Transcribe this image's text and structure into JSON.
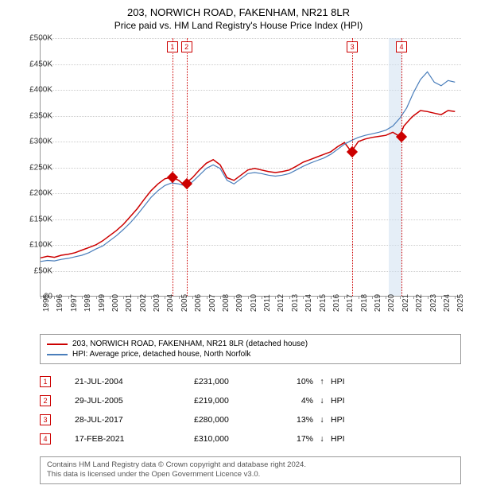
{
  "title": "203, NORWICH ROAD, FAKENHAM, NR21 8LR",
  "subtitle": "Price paid vs. HM Land Registry's House Price Index (HPI)",
  "chart": {
    "type": "line",
    "ylim": [
      0,
      500000
    ],
    "ytick_step": 50000,
    "ytick_labels": [
      "£0",
      "£50K",
      "£100K",
      "£150K",
      "£200K",
      "£250K",
      "£300K",
      "£350K",
      "£400K",
      "£450K",
      "£500K"
    ],
    "x_years": [
      1995,
      1996,
      1997,
      1998,
      1999,
      2000,
      2001,
      2002,
      2003,
      2004,
      2005,
      2006,
      2007,
      2008,
      2009,
      2010,
      2011,
      2012,
      2013,
      2014,
      2015,
      2016,
      2017,
      2018,
      2019,
      2020,
      2021,
      2022,
      2023,
      2024,
      2025
    ],
    "xlim": [
      1995,
      2025.5
    ],
    "shade_band": {
      "x_start": 2020.2,
      "x_end": 2021.1
    },
    "grid_color": "#cccccc",
    "background_color": "#ffffff",
    "series": [
      {
        "name": "property",
        "color": "#cc0000",
        "stroke_width": 1.5,
        "points": [
          [
            1995,
            75000
          ],
          [
            1995.5,
            78000
          ],
          [
            1996,
            76000
          ],
          [
            1996.5,
            80000
          ],
          [
            1997,
            82000
          ],
          [
            1997.5,
            85000
          ],
          [
            1998,
            90000
          ],
          [
            1998.5,
            95000
          ],
          [
            1999,
            100000
          ],
          [
            1999.5,
            108000
          ],
          [
            2000,
            118000
          ],
          [
            2000.5,
            128000
          ],
          [
            2001,
            140000
          ],
          [
            2001.5,
            155000
          ],
          [
            2002,
            170000
          ],
          [
            2002.5,
            188000
          ],
          [
            2003,
            205000
          ],
          [
            2003.5,
            218000
          ],
          [
            2004,
            228000
          ],
          [
            2004.5,
            231000
          ],
          [
            2005,
            225000
          ],
          [
            2005.3,
            218000
          ],
          [
            2005.5,
            219000
          ],
          [
            2006,
            230000
          ],
          [
            2006.5,
            245000
          ],
          [
            2007,
            258000
          ],
          [
            2007.5,
            265000
          ],
          [
            2008,
            255000
          ],
          [
            2008.5,
            230000
          ],
          [
            2009,
            225000
          ],
          [
            2009.5,
            235000
          ],
          [
            2010,
            245000
          ],
          [
            2010.5,
            248000
          ],
          [
            2011,
            245000
          ],
          [
            2011.5,
            242000
          ],
          [
            2012,
            240000
          ],
          [
            2012.5,
            242000
          ],
          [
            2013,
            245000
          ],
          [
            2013.5,
            252000
          ],
          [
            2014,
            260000
          ],
          [
            2014.5,
            265000
          ],
          [
            2015,
            270000
          ],
          [
            2015.5,
            275000
          ],
          [
            2016,
            280000
          ],
          [
            2016.5,
            290000
          ],
          [
            2017,
            298000
          ],
          [
            2017.5,
            280000
          ],
          [
            2018,
            300000
          ],
          [
            2018.5,
            305000
          ],
          [
            2019,
            308000
          ],
          [
            2019.5,
            310000
          ],
          [
            2020,
            312000
          ],
          [
            2020.5,
            318000
          ],
          [
            2021,
            310000
          ],
          [
            2021.3,
            330000
          ],
          [
            2021.8,
            345000
          ],
          [
            2022,
            350000
          ],
          [
            2022.5,
            360000
          ],
          [
            2023,
            358000
          ],
          [
            2023.5,
            355000
          ],
          [
            2024,
            352000
          ],
          [
            2024.5,
            360000
          ],
          [
            2025,
            358000
          ]
        ]
      },
      {
        "name": "hpi",
        "color": "#4a7ebb",
        "stroke_width": 1.2,
        "points": [
          [
            1995,
            68000
          ],
          [
            1995.5,
            70000
          ],
          [
            1996,
            69000
          ],
          [
            1996.5,
            72000
          ],
          [
            1997,
            74000
          ],
          [
            1997.5,
            77000
          ],
          [
            1998,
            80000
          ],
          [
            1998.5,
            85000
          ],
          [
            1999,
            92000
          ],
          [
            1999.5,
            98000
          ],
          [
            2000,
            108000
          ],
          [
            2000.5,
            118000
          ],
          [
            2001,
            130000
          ],
          [
            2001.5,
            143000
          ],
          [
            2002,
            158000
          ],
          [
            2002.5,
            175000
          ],
          [
            2003,
            192000
          ],
          [
            2003.5,
            205000
          ],
          [
            2004,
            215000
          ],
          [
            2004.5,
            220000
          ],
          [
            2005,
            218000
          ],
          [
            2005.5,
            214000
          ],
          [
            2006,
            222000
          ],
          [
            2006.5,
            235000
          ],
          [
            2007,
            248000
          ],
          [
            2007.5,
            255000
          ],
          [
            2008,
            248000
          ],
          [
            2008.5,
            225000
          ],
          [
            2009,
            218000
          ],
          [
            2009.5,
            228000
          ],
          [
            2010,
            238000
          ],
          [
            2010.5,
            240000
          ],
          [
            2011,
            238000
          ],
          [
            2011.5,
            235000
          ],
          [
            2012,
            233000
          ],
          [
            2012.5,
            235000
          ],
          [
            2013,
            238000
          ],
          [
            2013.5,
            245000
          ],
          [
            2014,
            252000
          ],
          [
            2014.5,
            258000
          ],
          [
            2015,
            263000
          ],
          [
            2015.5,
            268000
          ],
          [
            2016,
            275000
          ],
          [
            2016.5,
            285000
          ],
          [
            2017,
            295000
          ],
          [
            2017.5,
            302000
          ],
          [
            2018,
            308000
          ],
          [
            2018.5,
            312000
          ],
          [
            2019,
            315000
          ],
          [
            2019.5,
            318000
          ],
          [
            2020,
            322000
          ],
          [
            2020.5,
            330000
          ],
          [
            2021,
            345000
          ],
          [
            2021.5,
            365000
          ],
          [
            2022,
            395000
          ],
          [
            2022.5,
            420000
          ],
          [
            2023,
            435000
          ],
          [
            2023.5,
            415000
          ],
          [
            2024,
            408000
          ],
          [
            2024.5,
            418000
          ],
          [
            2025,
            415000
          ]
        ]
      }
    ],
    "sale_markers": [
      {
        "idx": "1",
        "x": 2004.55,
        "y": 231000
      },
      {
        "idx": "2",
        "x": 2005.57,
        "y": 219000
      },
      {
        "idx": "3",
        "x": 2017.57,
        "y": 280000
      },
      {
        "idx": "4",
        "x": 2021.13,
        "y": 310000
      }
    ]
  },
  "legend": {
    "items": [
      {
        "color": "#cc0000",
        "label": "203, NORWICH ROAD, FAKENHAM, NR21 8LR (detached house)"
      },
      {
        "color": "#4a7ebb",
        "label": "HPI: Average price, detached house, North Norfolk"
      }
    ]
  },
  "sales": [
    {
      "idx": "1",
      "date": "21-JUL-2004",
      "price": "£231,000",
      "pct": "10%",
      "arrow": "↑",
      "hpi": "HPI"
    },
    {
      "idx": "2",
      "date": "29-JUL-2005",
      "price": "£219,000",
      "pct": "4%",
      "arrow": "↓",
      "hpi": "HPI"
    },
    {
      "idx": "3",
      "date": "28-JUL-2017",
      "price": "£280,000",
      "pct": "13%",
      "arrow": "↓",
      "hpi": "HPI"
    },
    {
      "idx": "4",
      "date": "17-FEB-2021",
      "price": "£310,000",
      "pct": "17%",
      "arrow": "↓",
      "hpi": "HPI"
    }
  ],
  "footer": {
    "line1": "Contains HM Land Registry data © Crown copyright and database right 2024.",
    "line2": "This data is licensed under the Open Government Licence v3.0."
  }
}
